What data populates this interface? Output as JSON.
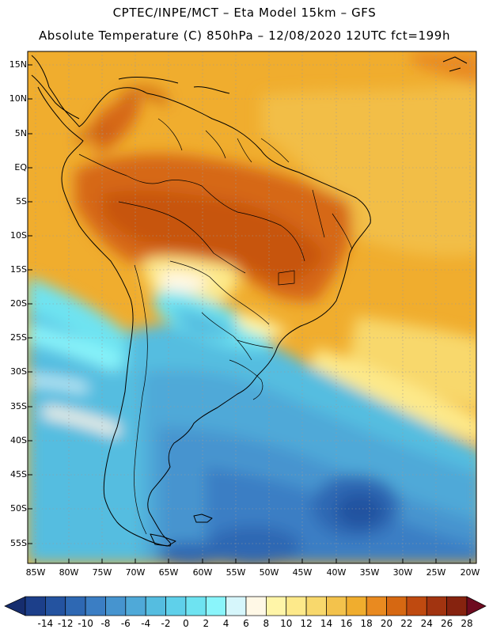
{
  "title_line1": "CPTEC/INPE/MCT –  Eta Model 15km – GFS",
  "title_line2": "Absolute Temperature (C) 850hPa – 12/08/2020 12UTC fct=199h",
  "lat_labels": [
    "15N",
    "10N",
    "5N",
    "EQ",
    "5S",
    "10S",
    "15S",
    "20S",
    "25S",
    "30S",
    "35S",
    "40S",
    "45S",
    "50S",
    "55S"
  ],
  "lon_labels": [
    "85W",
    "80W",
    "75W",
    "70W",
    "65W",
    "60W",
    "55W",
    "50W",
    "45W",
    "40W",
    "35W",
    "30W",
    "25W",
    "20W"
  ],
  "colorbar_labels": [
    "-14",
    "-12",
    "-10",
    "-8",
    "-6",
    "-4",
    "-2",
    "0",
    "2",
    "4",
    "6",
    "8",
    "10",
    "12",
    "14",
    "16",
    "18",
    "20",
    "22",
    "24",
    "26",
    "28"
  ],
  "colorbar_colors": [
    "#1c3f8a",
    "#2453a0",
    "#2e68b3",
    "#3b7ec4",
    "#4694cf",
    "#4fa9d8",
    "#55bde0",
    "#5fd0ea",
    "#6ee3f1",
    "#8af5fb",
    "#d6f6fb",
    "#fff8e6",
    "#fff5a8",
    "#fde98a",
    "#f8d86c",
    "#f3c24c",
    "#f0ad2e",
    "#e98a20",
    "#d66812",
    "#bf4a10",
    "#a23410",
    "#86230f"
  ],
  "colorbar_under": "#162d6e",
  "colorbar_over": "#6e0b20"
}
